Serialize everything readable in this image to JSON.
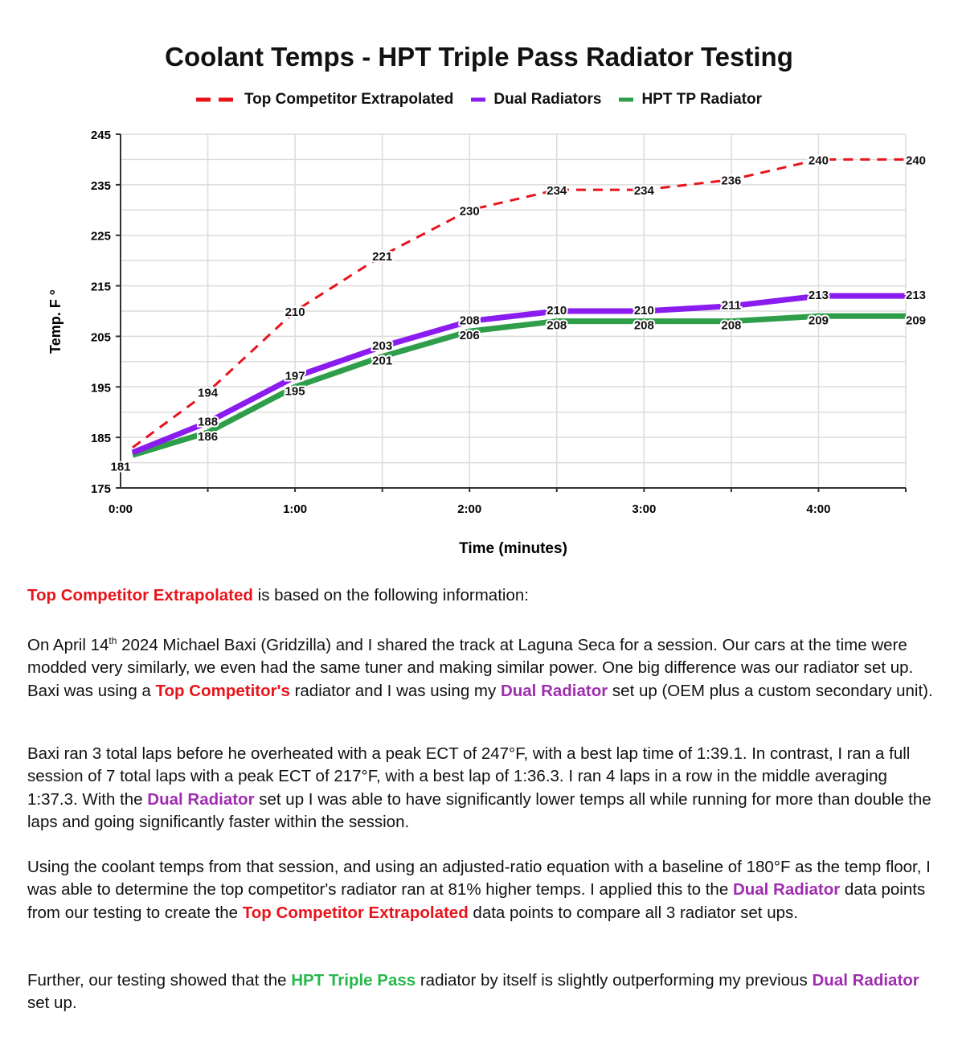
{
  "chart_data": {
    "type": "line",
    "title": "Coolant Temps - HPT Triple Pass Radiator Testing",
    "xlabel": "Time (minutes)",
    "ylabel": "Temp. F °",
    "x": [
      "0:00",
      "0:30",
      "1:00",
      "1:30",
      "2:00",
      "2:30",
      "3:00",
      "3:30",
      "4:00",
      "4:30"
    ],
    "x_tick_labels": [
      "0:00",
      "1:00",
      "2:00",
      "3:00",
      "4:00"
    ],
    "y_tick_labels": [
      "175",
      "185",
      "195",
      "205",
      "215",
      "225",
      "235",
      "245"
    ],
    "ylim": [
      175,
      245
    ],
    "grid": true,
    "legend_position": "top",
    "series": [
      {
        "name": "Top Competitor Extrapolated",
        "color": "#e8141b",
        "style": "dashed",
        "values": [
          181,
          194,
          210,
          221,
          230,
          234,
          234,
          236,
          240,
          240
        ]
      },
      {
        "name": "Dual Radiators",
        "color": "#8b1cf0",
        "style": "solid",
        "values": [
          181,
          188,
          197,
          203,
          208,
          210,
          210,
          211,
          213,
          213
        ]
      },
      {
        "name": "HPT TP Radiator",
        "color": "#2e9e4a",
        "style": "solid",
        "values": [
          181,
          186,
          195,
          201,
          206,
          208,
          208,
          208,
          209,
          209
        ]
      }
    ]
  },
  "text": {
    "p1_red": "Top Competitor Extrapolated",
    "p1_rest": " is based on the following information:",
    "p2_a": "On April 14",
    "p2_sup": "th",
    "p2_b": " 2024 Michael Baxi (Gridzilla) and I shared the track at Laguna Seca for a session. Our cars at the time were modded very similarly, we even had the same tuner and making similar power. One big difference was our radiator set up. Baxi was using a ",
    "p2_red": "Top Competitor's",
    "p2_c": " radiator and I was using my ",
    "p2_pur": "Dual Radiator",
    "p2_d": " set up (OEM plus a custom secondary unit).",
    "p3_a": "Baxi ran 3 total laps before he overheated with a peak ECT of 247°F, with a best lap time of 1:39.1. In contrast, I ran a full session of 7 total laps with a peak ECT of 217°F, with a best lap of 1:36.3. I ran 4 laps in a row in the middle averaging 1:37.3. With the ",
    "p3_pur": "Dual Radiator",
    "p3_b": " set up I was able to have significantly lower temps all while running for more than double the laps and going significantly faster within the session.",
    "p4_a": "Using the coolant temps from that session, and using an adjusted-ratio equation with a baseline of 180°F as the temp floor, I was able to determine the top competitor's radiator ran at 81% higher temps. I applied this to the ",
    "p4_pur": "Dual Radiator",
    "p4_b": " data points from our testing to create the ",
    "p4_red": "Top Competitor Extrapolated",
    "p4_c": " data points to compare all 3 radiator set ups.",
    "p5_a": "Further, our testing showed that the ",
    "p5_grn": "HPT Triple Pass",
    "p5_b": " radiator by itself is slightly outperforming my previous ",
    "p5_pur": "Dual Radiator",
    "p5_c": " set up."
  }
}
